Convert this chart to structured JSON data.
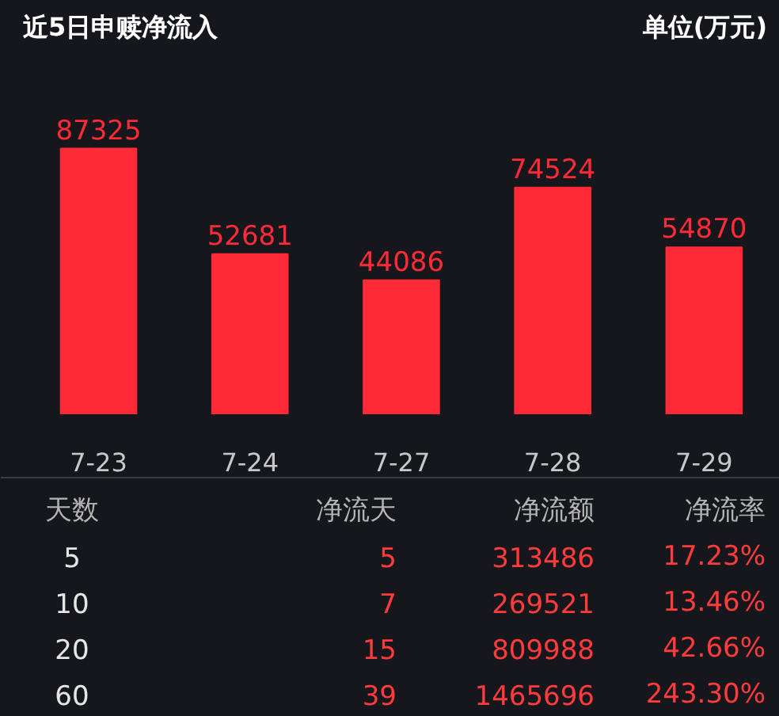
{
  "chart_data": [
    {
      "type": "bar",
      "title": "近5日申赎净流入",
      "subtitle": "单位(万元)",
      "categories": [
        "7-23",
        "7-24",
        "7-27",
        "7-28",
        "7-29"
      ],
      "values": [
        87325,
        52681,
        44086,
        74524,
        54870
      ],
      "color": "#fe2a37",
      "data_labels": true
    },
    {
      "type": "other",
      "categories": [
        "天数",
        "净流天",
        "净流额",
        "净流率"
      ],
      "annotations": [
        "5",
        "5",
        "313486",
        "17.23%",
        "10",
        "7",
        "269521",
        "13.46%",
        "20",
        "15",
        "809988",
        "42.66%",
        "60",
        "39",
        "1465696",
        "243.30%"
      ]
    }
  ]
}
